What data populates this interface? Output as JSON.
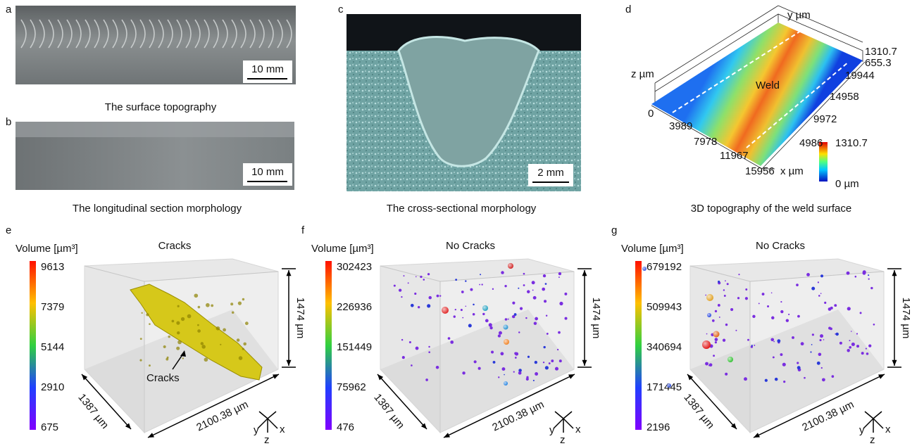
{
  "panels": {
    "a": {
      "label": "a",
      "scale_bar": "10 mm",
      "caption": "The surface topography"
    },
    "b": {
      "label": "b",
      "scale_bar": "10 mm",
      "caption": "The longitudinal section morphology"
    },
    "c": {
      "label": "c",
      "scale_bar": "2 mm",
      "caption": "The cross-sectional morphology"
    },
    "d": {
      "label": "d",
      "caption": "3D topography of the weld surface",
      "annotation": "Weld",
      "axes": {
        "x": "x  µm",
        "y": "y  µm",
        "z": "z  µm"
      },
      "x_ticks": [
        "0",
        "3989",
        "7978",
        "11967",
        "15956"
      ],
      "y_ticks": [
        "4986",
        "9972",
        "14958",
        "19944"
      ],
      "z_ticks": [
        "655.3",
        "1310.7"
      ],
      "colorbar": {
        "max": "1310.7",
        "min": "0  µm"
      }
    },
    "e": {
      "label": "e",
      "colorbar_title": "Volume [µm³]",
      "colorbar_ticks": [
        "9613",
        "7379",
        "5144",
        "2910",
        "675"
      ],
      "title": "Cracks",
      "annotation": "Cracks",
      "height": "1474 µm",
      "depth": "1387 µm",
      "width": "2100.38 µm",
      "axes": [
        "y",
        "z",
        "x"
      ]
    },
    "f": {
      "label": "f",
      "colorbar_title": "Volume [µm³]",
      "colorbar_ticks": [
        "302423",
        "226936",
        "151449",
        "75962",
        "476"
      ],
      "title": "No Cracks",
      "height": "1474 µm",
      "depth": "1387 µm",
      "width": "2100.38 µm",
      "axes": [
        "y",
        "z",
        "x"
      ]
    },
    "g": {
      "label": "g",
      "colorbar_title": "Volume [µm³]",
      "colorbar_ticks": [
        "679192",
        "509943",
        "340694",
        "171445",
        "2196"
      ],
      "title": "No Cracks",
      "height": "1474 µm",
      "depth": "1387 µm",
      "width": "2100.38 µm",
      "axes": [
        "y",
        "z",
        "x"
      ]
    }
  }
}
